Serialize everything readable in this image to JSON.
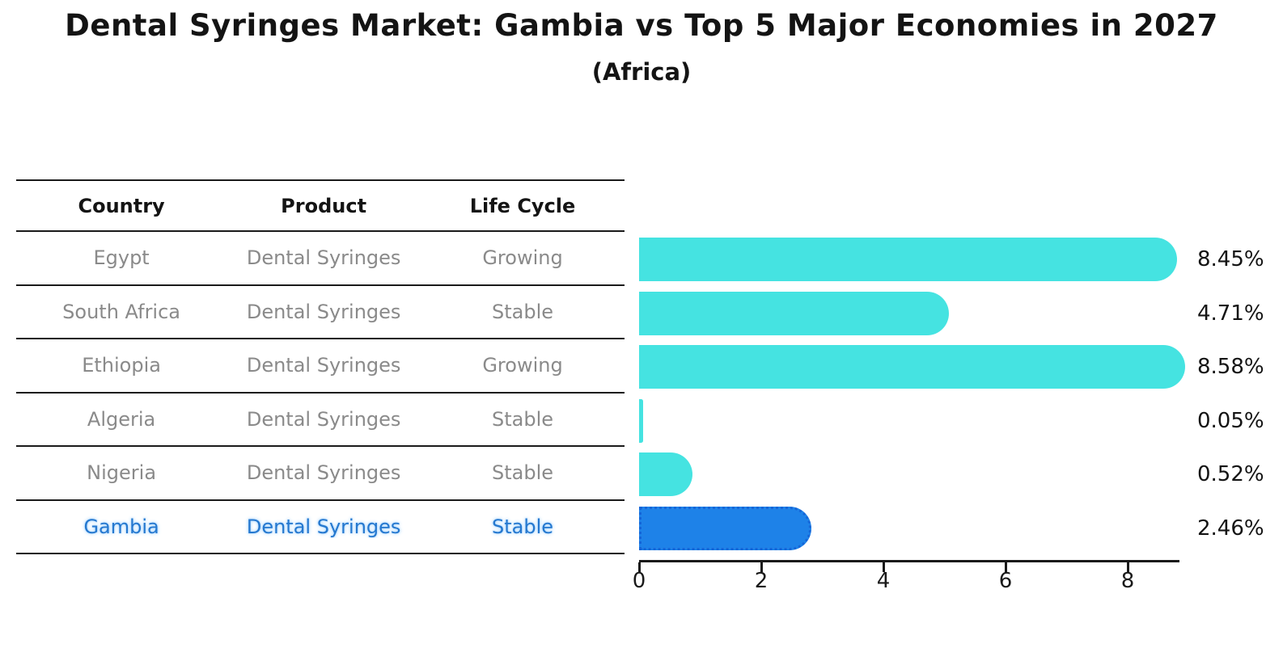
{
  "title": "Dental Syringes Market: Gambia vs Top 5 Major Economies in 2027",
  "subtitle": "(Africa)",
  "table": {
    "headers": [
      "Country",
      "Product",
      "Life Cycle"
    ],
    "rows": [
      {
        "country": "Egypt",
        "product": "Dental Syringes",
        "life_cycle": "Growing",
        "highlighted": false
      },
      {
        "country": "South Africa",
        "product": "Dental Syringes",
        "life_cycle": "Stable",
        "highlighted": false
      },
      {
        "country": "Ethiopia",
        "product": "Dental Syringes",
        "life_cycle": "Growing",
        "highlighted": false
      },
      {
        "country": "Algeria",
        "product": "Dental Syringes",
        "life_cycle": "Stable",
        "highlighted": false
      },
      {
        "country": "Nigeria",
        "product": "Dental Syringes",
        "life_cycle": "Stable",
        "highlighted": false
      },
      {
        "country": "Gambia",
        "product": "Dental Syringes",
        "life_cycle": "Stable",
        "highlighted": true
      }
    ]
  },
  "chart_data": {
    "type": "bar",
    "orientation": "horizontal",
    "title": "Dental Syringes Market: Gambia vs Top 5 Major Economies in 2027",
    "subtitle": "(Africa)",
    "categories": [
      "Egypt",
      "South Africa",
      "Ethiopia",
      "Algeria",
      "Nigeria",
      "Gambia"
    ],
    "values": [
      8.45,
      4.71,
      8.58,
      0.05,
      0.52,
      2.46
    ],
    "value_labels": [
      "8.45%",
      "4.71%",
      "8.58%",
      "0.05%",
      "0.52%",
      "2.46%"
    ],
    "unit": "%",
    "x_ticks": [
      0,
      2,
      4,
      6,
      8
    ],
    "xlim": [
      0,
      8.85
    ],
    "grid": false,
    "legend": false,
    "highlight_category": "Gambia",
    "colors": {
      "bar": "#45e3e1",
      "highlight_bar": "#1e82e8",
      "highlight_border": "#1566d8",
      "highlight_text": "#2578cf",
      "cell_text": "#8a8a8a",
      "text": "#141414"
    }
  }
}
